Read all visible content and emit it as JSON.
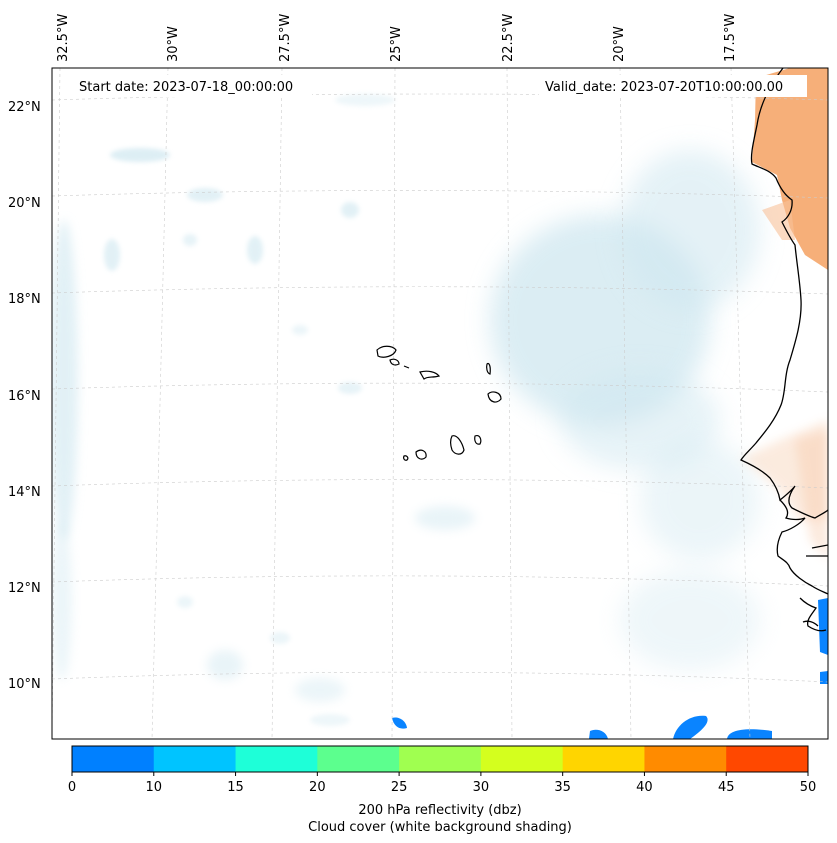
{
  "map": {
    "start_date": "Start date: 2023-07-18_00:00:00",
    "valid_date": "Valid_date: 2023-07-20T10:00:00.00",
    "longitude_labels": [
      "32.5°W",
      "30°W",
      "27.5°W",
      "25°W",
      "22.5°W",
      "20°W",
      "17.5°W"
    ],
    "latitude_labels": [
      "22°N",
      "20°N",
      "18°N",
      "16°N",
      "14°N",
      "12°N",
      "10°N"
    ],
    "layers": {
      "cloud_cover_color": "#cfe7f0",
      "reflectivity_low_color": "#0a84ff",
      "land_warm_color": "#f5a66a"
    }
  },
  "colorbar": {
    "ticks": [
      "0",
      "10",
      "15",
      "20",
      "25",
      "30",
      "35",
      "40",
      "45",
      "50"
    ],
    "colors": [
      "#0080ff",
      "#00c4ff",
      "#1effd8",
      "#5cff8e",
      "#a0ff50",
      "#d4ff1e",
      "#ffd500",
      "#ff8b00",
      "#ff4800"
    ],
    "label_line1": "200 hPa reflectivity (dbz)",
    "label_line2": "Cloud cover (white background shading)"
  }
}
